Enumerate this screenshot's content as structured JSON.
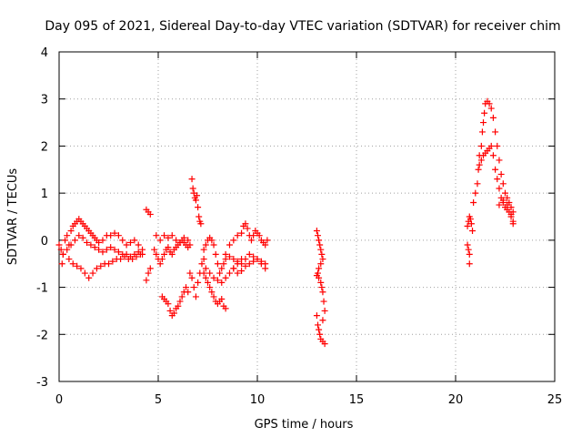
{
  "chart_data": {
    "type": "scatter",
    "title": "Day 095 of 2021, Sidereal Day-to-day VTEC variation (SDTVAR) for receiver chim",
    "xlabel": "GPS time / hours",
    "ylabel": "SDTVAR / TECUs",
    "xlim": [
      0,
      25
    ],
    "ylim": [
      -3,
      4
    ],
    "xticks": [
      0,
      5,
      10,
      15,
      20,
      25
    ],
    "yticks": [
      -3,
      -2,
      -1,
      0,
      1,
      2,
      3,
      4
    ],
    "xtick_labels": [
      "0",
      "5",
      "10",
      "15",
      "20",
      "25"
    ],
    "ytick_labels": [
      "-3",
      "-2",
      "-1",
      "0",
      "1",
      "2",
      "3",
      "4"
    ],
    "grid": true,
    "marker": "+",
    "color": "#ff0000",
    "series": [
      {
        "name": "SDTVAR",
        "points": [
          [
            0.0,
            -0.1
          ],
          [
            0.1,
            -0.2
          ],
          [
            0.15,
            -0.5
          ],
          [
            0.2,
            -0.3
          ],
          [
            0.3,
            0.0
          ],
          [
            0.4,
            0.1
          ],
          [
            0.5,
            -0.1
          ],
          [
            0.6,
            0.2
          ],
          [
            0.7,
            0.3
          ],
          [
            0.8,
            0.35
          ],
          [
            0.9,
            0.4
          ],
          [
            1.0,
            0.45
          ],
          [
            1.1,
            0.4
          ],
          [
            1.2,
            0.35
          ],
          [
            1.3,
            0.3
          ],
          [
            1.4,
            0.25
          ],
          [
            1.5,
            0.2
          ],
          [
            1.6,
            0.15
          ],
          [
            1.7,
            0.1
          ],
          [
            1.8,
            0.05
          ],
          [
            1.9,
            0.0
          ],
          [
            2.0,
            -0.05
          ],
          [
            2.2,
            0.0
          ],
          [
            2.4,
            0.1
          ],
          [
            2.6,
            0.1
          ],
          [
            2.8,
            0.15
          ],
          [
            3.0,
            0.1
          ],
          [
            3.2,
            0.0
          ],
          [
            3.4,
            -0.1
          ],
          [
            3.6,
            -0.05
          ],
          [
            3.8,
            0.0
          ],
          [
            4.0,
            -0.1
          ],
          [
            4.2,
            -0.2
          ],
          [
            0.2,
            -0.3
          ],
          [
            0.4,
            -0.2
          ],
          [
            0.6,
            -0.1
          ],
          [
            0.8,
            0.0
          ],
          [
            1.0,
            0.1
          ],
          [
            1.2,
            0.05
          ],
          [
            1.4,
            -0.05
          ],
          [
            1.6,
            -0.1
          ],
          [
            1.8,
            -0.15
          ],
          [
            2.0,
            -0.2
          ],
          [
            2.2,
            -0.25
          ],
          [
            2.4,
            -0.2
          ],
          [
            2.6,
            -0.15
          ],
          [
            2.8,
            -0.2
          ],
          [
            3.0,
            -0.25
          ],
          [
            3.2,
            -0.3
          ],
          [
            3.4,
            -0.3
          ],
          [
            3.6,
            -0.35
          ],
          [
            3.8,
            -0.3
          ],
          [
            4.0,
            -0.25
          ],
          [
            4.2,
            -0.3
          ],
          [
            0.5,
            -0.4
          ],
          [
            0.7,
            -0.5
          ],
          [
            0.9,
            -0.55
          ],
          [
            1.1,
            -0.6
          ],
          [
            1.3,
            -0.7
          ],
          [
            1.5,
            -0.8
          ],
          [
            1.7,
            -0.7
          ],
          [
            1.9,
            -0.6
          ],
          [
            2.1,
            -0.55
          ],
          [
            2.3,
            -0.5
          ],
          [
            2.5,
            -0.5
          ],
          [
            2.7,
            -0.45
          ],
          [
            2.9,
            -0.4
          ],
          [
            3.1,
            -0.4
          ],
          [
            3.3,
            -0.35
          ],
          [
            3.5,
            -0.4
          ],
          [
            3.7,
            -0.4
          ],
          [
            3.9,
            -0.35
          ],
          [
            4.1,
            -0.3
          ],
          [
            4.4,
            0.65
          ],
          [
            4.5,
            0.6
          ],
          [
            4.6,
            0.55
          ],
          [
            4.4,
            -0.85
          ],
          [
            4.5,
            -0.7
          ],
          [
            4.6,
            -0.6
          ],
          [
            4.8,
            -0.2
          ],
          [
            4.9,
            -0.3
          ],
          [
            5.0,
            -0.4
          ],
          [
            5.1,
            -0.5
          ],
          [
            5.2,
            -0.4
          ],
          [
            5.3,
            -0.3
          ],
          [
            5.4,
            -0.2
          ],
          [
            5.5,
            -0.15
          ],
          [
            5.6,
            -0.25
          ],
          [
            5.7,
            -0.3
          ],
          [
            5.8,
            -0.2
          ],
          [
            5.9,
            -0.15
          ],
          [
            6.0,
            -0.1
          ],
          [
            6.1,
            -0.05
          ],
          [
            6.2,
            0.0
          ],
          [
            6.3,
            -0.05
          ],
          [
            6.4,
            -0.1
          ],
          [
            6.5,
            -0.15
          ],
          [
            6.6,
            -0.1
          ],
          [
            4.9,
            0.1
          ],
          [
            5.1,
            0.0
          ],
          [
            5.3,
            0.1
          ],
          [
            5.5,
            0.05
          ],
          [
            5.7,
            0.1
          ],
          [
            5.9,
            0.0
          ],
          [
            6.1,
            -0.05
          ],
          [
            6.3,
            0.05
          ],
          [
            6.5,
            0.0
          ],
          [
            5.2,
            -1.2
          ],
          [
            5.3,
            -1.25
          ],
          [
            5.4,
            -1.3
          ],
          [
            5.5,
            -1.35
          ],
          [
            5.6,
            -1.5
          ],
          [
            5.7,
            -1.6
          ],
          [
            5.8,
            -1.55
          ],
          [
            5.9,
            -1.45
          ],
          [
            6.0,
            -1.4
          ],
          [
            6.1,
            -1.3
          ],
          [
            6.2,
            -1.2
          ],
          [
            6.3,
            -1.1
          ],
          [
            6.4,
            -1.0
          ],
          [
            6.5,
            -1.1
          ],
          [
            6.6,
            -0.7
          ],
          [
            6.7,
            -0.8
          ],
          [
            6.8,
            -1.0
          ],
          [
            6.9,
            -1.2
          ],
          [
            7.0,
            -0.9
          ],
          [
            7.1,
            -0.7
          ],
          [
            7.2,
            -0.5
          ],
          [
            7.3,
            -0.4
          ],
          [
            6.7,
            1.3
          ],
          [
            6.75,
            1.1
          ],
          [
            6.8,
            1.0
          ],
          [
            6.85,
            0.9
          ],
          [
            6.9,
            0.85
          ],
          [
            6.95,
            0.95
          ],
          [
            7.0,
            0.7
          ],
          [
            7.05,
            0.5
          ],
          [
            7.1,
            0.4
          ],
          [
            7.15,
            0.35
          ],
          [
            7.3,
            -0.7
          ],
          [
            7.4,
            -0.8
          ],
          [
            7.5,
            -0.9
          ],
          [
            7.6,
            -1.0
          ],
          [
            7.7,
            -1.1
          ],
          [
            7.8,
            -1.2
          ],
          [
            7.9,
            -1.3
          ],
          [
            8.0,
            -1.35
          ],
          [
            8.1,
            -1.3
          ],
          [
            8.2,
            -1.25
          ],
          [
            8.3,
            -1.4
          ],
          [
            8.4,
            -1.45
          ],
          [
            7.3,
            -0.2
          ],
          [
            7.4,
            -0.1
          ],
          [
            7.5,
            0.0
          ],
          [
            7.6,
            0.05
          ],
          [
            7.7,
            0.0
          ],
          [
            7.8,
            -0.1
          ],
          [
            7.9,
            -0.3
          ],
          [
            8.0,
            -0.5
          ],
          [
            8.1,
            -0.7
          ],
          [
            8.2,
            -0.6
          ],
          [
            8.3,
            -0.5
          ],
          [
            8.4,
            -0.4
          ],
          [
            7.4,
            -0.6
          ],
          [
            7.6,
            -0.7
          ],
          [
            7.8,
            -0.8
          ],
          [
            8.0,
            -0.85
          ],
          [
            8.2,
            -0.9
          ],
          [
            8.4,
            -0.8
          ],
          [
            8.6,
            -0.7
          ],
          [
            8.8,
            -0.6
          ],
          [
            9.0,
            -0.5
          ],
          [
            9.2,
            -0.4
          ],
          [
            8.4,
            -0.3
          ],
          [
            8.6,
            -0.35
          ],
          [
            8.8,
            -0.4
          ],
          [
            9.0,
            -0.45
          ],
          [
            9.2,
            -0.5
          ],
          [
            9.4,
            -0.4
          ],
          [
            9.6,
            -0.3
          ],
          [
            9.8,
            -0.35
          ],
          [
            10.0,
            -0.4
          ],
          [
            10.2,
            -0.5
          ],
          [
            10.4,
            -0.6
          ],
          [
            8.6,
            -0.1
          ],
          [
            8.8,
            0.0
          ],
          [
            9.0,
            0.1
          ],
          [
            9.2,
            0.15
          ],
          [
            9.3,
            0.3
          ],
          [
            9.4,
            0.35
          ],
          [
            9.5,
            0.25
          ],
          [
            9.6,
            0.1
          ],
          [
            9.7,
            0.0
          ],
          [
            9.8,
            0.1
          ],
          [
            9.9,
            0.2
          ],
          [
            10.0,
            0.15
          ],
          [
            10.1,
            0.1
          ],
          [
            10.2,
            0.0
          ],
          [
            10.3,
            -0.05
          ],
          [
            10.4,
            -0.1
          ],
          [
            10.5,
            0.0
          ],
          [
            8.8,
            -0.6
          ],
          [
            9.0,
            -0.7
          ],
          [
            9.2,
            -0.65
          ],
          [
            9.4,
            -0.55
          ],
          [
            9.6,
            -0.5
          ],
          [
            9.8,
            -0.45
          ],
          [
            10.0,
            -0.4
          ],
          [
            10.2,
            -0.45
          ],
          [
            10.4,
            -0.5
          ],
          [
            13.0,
            0.2
          ],
          [
            13.05,
            0.1
          ],
          [
            13.1,
            0.0
          ],
          [
            13.15,
            -0.1
          ],
          [
            13.2,
            -0.2
          ],
          [
            13.25,
            -0.3
          ],
          [
            13.3,
            -0.4
          ],
          [
            13.2,
            -0.5
          ],
          [
            13.1,
            -0.6
          ],
          [
            13.05,
            -0.7
          ],
          [
            13.0,
            -0.75
          ],
          [
            13.1,
            -0.8
          ],
          [
            13.2,
            -0.9
          ],
          [
            13.25,
            -1.0
          ],
          [
            13.3,
            -1.1
          ],
          [
            13.35,
            -1.3
          ],
          [
            13.4,
            -1.5
          ],
          [
            13.3,
            -1.7
          ],
          [
            13.0,
            -1.6
          ],
          [
            13.05,
            -1.8
          ],
          [
            13.1,
            -1.9
          ],
          [
            13.15,
            -2.0
          ],
          [
            13.2,
            -2.1
          ],
          [
            13.3,
            -2.15
          ],
          [
            13.4,
            -2.2
          ],
          [
            20.6,
            -0.1
          ],
          [
            20.65,
            -0.2
          ],
          [
            20.7,
            -0.3
          ],
          [
            20.7,
            -0.5
          ],
          [
            20.6,
            0.3
          ],
          [
            20.65,
            0.4
          ],
          [
            20.7,
            0.5
          ],
          [
            20.75,
            0.45
          ],
          [
            20.8,
            0.35
          ],
          [
            20.85,
            0.2
          ],
          [
            20.9,
            0.8
          ],
          [
            21.0,
            1.0
          ],
          [
            21.1,
            1.2
          ],
          [
            21.15,
            1.5
          ],
          [
            21.2,
            1.8
          ],
          [
            21.3,
            2.0
          ],
          [
            21.35,
            2.3
          ],
          [
            21.4,
            2.5
          ],
          [
            21.45,
            2.7
          ],
          [
            21.5,
            2.9
          ],
          [
            21.6,
            2.95
          ],
          [
            21.7,
            2.9
          ],
          [
            21.8,
            2.8
          ],
          [
            21.9,
            2.6
          ],
          [
            22.0,
            2.3
          ],
          [
            22.1,
            2.0
          ],
          [
            22.2,
            1.7
          ],
          [
            22.3,
            1.4
          ],
          [
            22.4,
            1.2
          ],
          [
            22.5,
            1.0
          ],
          [
            22.6,
            0.9
          ],
          [
            22.7,
            0.8
          ],
          [
            22.8,
            0.7
          ],
          [
            22.9,
            0.6
          ],
          [
            21.2,
            1.6
          ],
          [
            21.3,
            1.7
          ],
          [
            21.4,
            1.8
          ],
          [
            21.5,
            1.85
          ],
          [
            21.6,
            1.9
          ],
          [
            21.7,
            1.95
          ],
          [
            21.8,
            2.0
          ],
          [
            21.9,
            1.8
          ],
          [
            22.0,
            1.5
          ],
          [
            22.1,
            1.3
          ],
          [
            22.2,
            1.1
          ],
          [
            22.3,
            0.9
          ],
          [
            22.4,
            0.8
          ],
          [
            22.5,
            0.7
          ],
          [
            22.6,
            0.65
          ],
          [
            22.7,
            0.6
          ],
          [
            22.8,
            0.5
          ],
          [
            22.9,
            0.4
          ],
          [
            22.2,
            0.75
          ],
          [
            22.4,
            0.85
          ],
          [
            22.6,
            0.75
          ],
          [
            22.8,
            0.55
          ],
          [
            22.9,
            0.35
          ]
        ]
      }
    ]
  }
}
